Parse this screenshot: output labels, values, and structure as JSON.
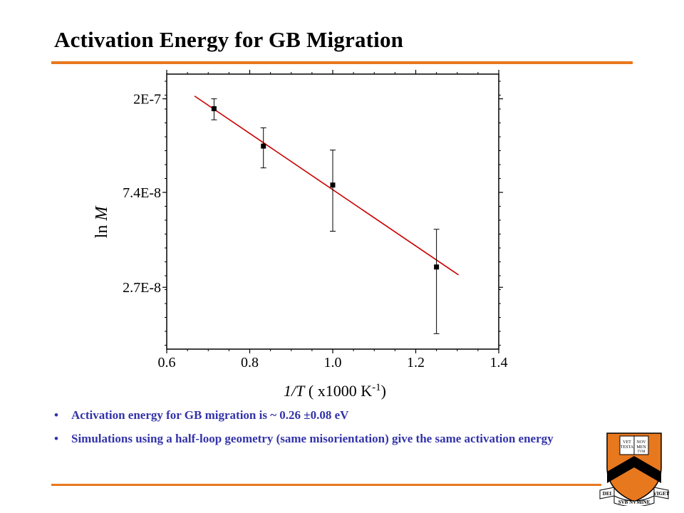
{
  "slide": {
    "title": "Activation Energy for GB Migration",
    "accent_color": "#e8781e",
    "bullet_color": "#3333aa",
    "bullets": [
      "Activation energy for GB migration is ~ 0.26 ±0.08 eV",
      "Simulations using a half-loop geometry (same misorientation) give the same activation energy"
    ]
  },
  "logo": {
    "icon": "princeton-shield-icon",
    "motto_left": "DEI",
    "motto_center": "SVB NVMINE",
    "motto_right": "VIGET",
    "book_text": [
      "VET",
      "NOV",
      "TESTA",
      "MEN",
      "TVM"
    ],
    "shield_color": "#e8781e",
    "chevron_color": "#000000"
  },
  "chart_data": {
    "type": "scatter",
    "xlabel": "1/T ( x1000 K-1)",
    "xlabel_parts": {
      "var": "1/T",
      "pre": " ( x1000 K",
      "sup": "-1",
      "post": ")"
    },
    "ylabel": "ln M",
    "ylabel_parts": {
      "fn": "ln",
      "var": "M"
    },
    "xlim": [
      0.6,
      1.4
    ],
    "ylim_log": [
      1.4e-08,
      2.6e-07
    ],
    "y_scale": "log",
    "x_ticks": [
      0.6,
      0.8,
      1.0,
      1.2,
      1.4
    ],
    "x_tick_labels": [
      "0.6",
      "0.8",
      "1.0",
      "1.2",
      "1.4"
    ],
    "y_ticks": [
      2e-07,
      7.4e-08,
      2.7e-08
    ],
    "y_tick_labels": [
      "2E-7",
      "7.4E-8",
      "2.7E-8"
    ],
    "series": [
      {
        "points": [
          {
            "x": 0.714,
            "y": 1.8e-07,
            "err_low": 1.6e-07,
            "err_high": 2e-07
          },
          {
            "x": 0.833,
            "y": 1.21e-07,
            "err_low": 9.6e-08,
            "err_high": 1.47e-07
          },
          {
            "x": 1.0,
            "y": 8e-08,
            "err_low": 4.9e-08,
            "err_high": 1.16e-07
          },
          {
            "x": 1.25,
            "y": 3.35e-08,
            "err_low": 1.65e-08,
            "err_high": 5e-08
          }
        ],
        "color": "#000000"
      }
    ],
    "fit_line": {
      "x": [
        0.667,
        1.303
      ],
      "y": [
        2.06e-07,
        3.08e-08
      ],
      "color": "#cc0000"
    },
    "grid": false,
    "legend": "none"
  }
}
